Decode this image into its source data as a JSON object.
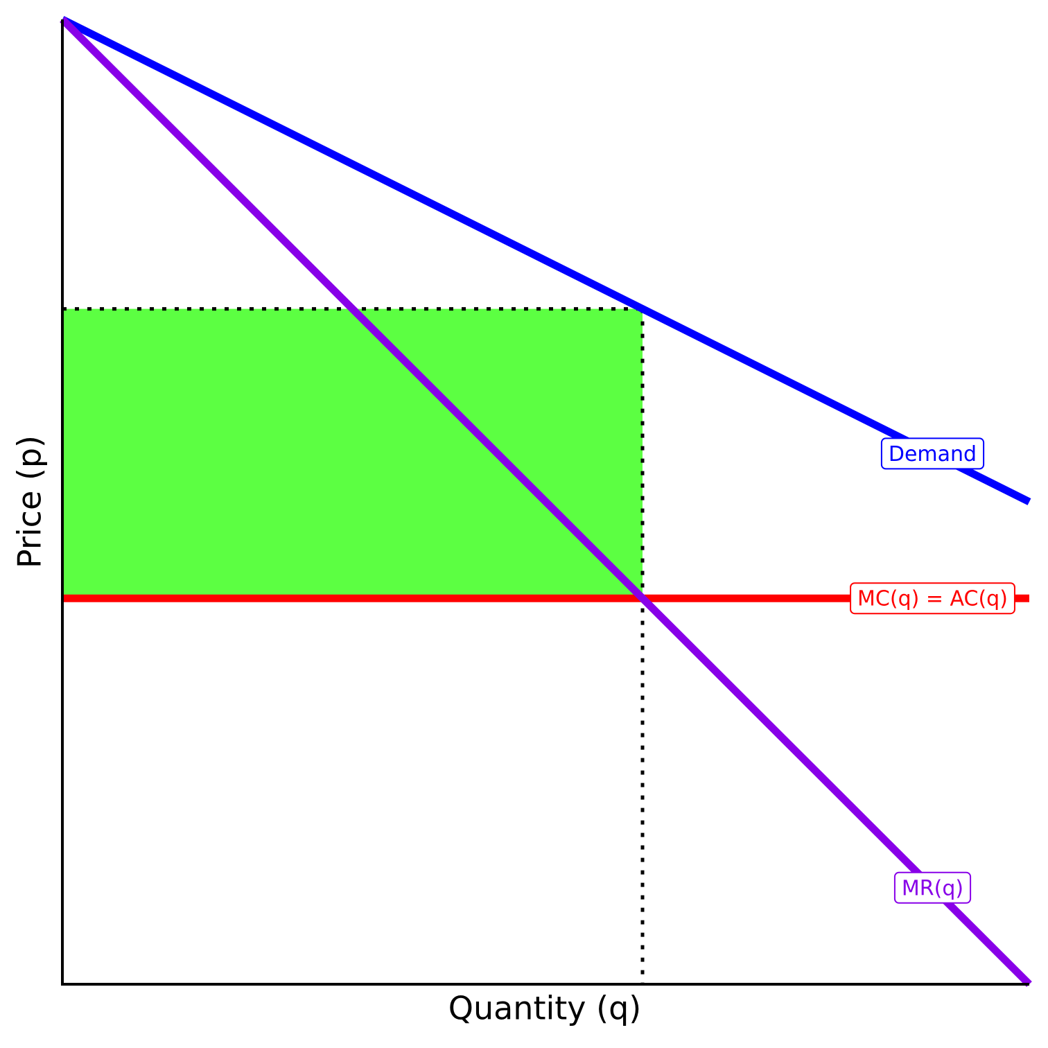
{
  "chart_data": {
    "type": "line",
    "x_label": "Quantity (q)",
    "y_label": "Price (p)",
    "xlim": [
      0,
      10
    ],
    "ylim": [
      0,
      10
    ],
    "series": [
      {
        "name": "Demand",
        "color": "#0000ff",
        "x": [
          0,
          10
        ],
        "values": [
          10,
          5
        ]
      },
      {
        "name": "MR(q)",
        "color": "#8800e8",
        "x": [
          0,
          10
        ],
        "values": [
          10,
          0
        ]
      },
      {
        "name": "MC(q) = AC(q)",
        "color": "#ff0000",
        "x": [
          0,
          10
        ],
        "values": [
          4,
          4
        ]
      }
    ],
    "profit_area": {
      "color": "#5cff42",
      "x": [
        0,
        6
      ],
      "y": [
        4,
        7
      ]
    },
    "guides": {
      "x": 6,
      "y": 7
    }
  }
}
